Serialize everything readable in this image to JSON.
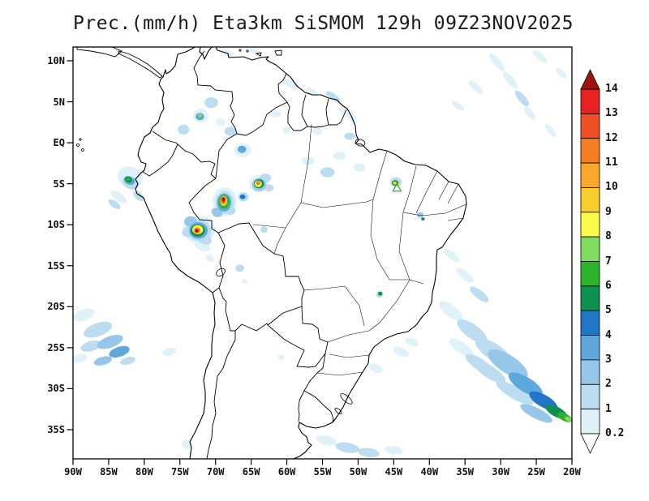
{
  "title": "Prec.(mm/h) Eta3km SiSMOM 129h 09Z23NOV2025",
  "chart_data": {
    "type": "heatmap",
    "variable": "Prec.(mm/h)",
    "model": "Eta3km SiSMOM",
    "forecast_hour": "129h",
    "valid_time": "09Z23NOV2025",
    "x_ticks": [
      "90W",
      "85W",
      "80W",
      "75W",
      "70W",
      "65W",
      "60W",
      "55W",
      "50W",
      "45W",
      "40W",
      "35W",
      "30W",
      "25W",
      "20W"
    ],
    "y_ticks": [
      "10N",
      "5N",
      "EQ",
      "5S",
      "10S",
      "15S",
      "20S",
      "25S",
      "30S",
      "35S"
    ],
    "colorbar": {
      "levels": [
        0.2,
        1,
        2,
        3,
        4,
        5,
        6,
        7,
        8,
        9,
        10,
        11,
        12,
        13,
        14
      ],
      "labels": [
        "0.2",
        "1",
        "2",
        "3",
        "4",
        "5",
        "6",
        "7",
        "8",
        "9",
        "10",
        "11",
        "12",
        "13",
        "14"
      ],
      "colors": [
        "#dff2fa",
        "#bcdcf0",
        "#96c6e9",
        "#5fa8dc",
        "#2176c8",
        "#0c9150",
        "#2cb42c",
        "#7fdc5f",
        "#fbfb4b",
        "#f8ce2e",
        "#f9a82b",
        "#f67d22",
        "#ef5023",
        "#e82222",
        "#9c1510"
      ],
      "under_color": "#ffffff"
    },
    "precip_cells": [
      [
        -82.0,
        -4.2,
        3.6,
        2.6,
        20,
        0.2
      ],
      [
        -81.9,
        -4.9,
        2.4,
        1.5,
        25,
        1
      ],
      [
        -82.1,
        -4.6,
        1.6,
        1.0,
        25,
        3
      ],
      [
        -82.2,
        -4.5,
        1.0,
        0.7,
        25,
        5
      ],
      [
        -82.25,
        -4.45,
        0.55,
        0.4,
        25,
        6
      ],
      [
        -83.6,
        -6.6,
        2.6,
        1.0,
        35,
        0.2
      ],
      [
        -84.2,
        -7.5,
        2.0,
        0.8,
        35,
        1
      ],
      [
        -80.8,
        -6.5,
        1.8,
        0.9,
        42,
        1
      ],
      [
        -72.3,
        -10.6,
        4.5,
        3.4,
        0,
        0.2
      ],
      [
        -72.3,
        -10.7,
        3.4,
        2.6,
        0,
        1
      ],
      [
        -72.4,
        -10.7,
        2.6,
        2.0,
        0,
        3
      ],
      [
        -72.5,
        -10.7,
        2.0,
        1.5,
        0,
        5
      ],
      [
        -72.5,
        -10.6,
        1.5,
        1.1,
        0,
        8
      ],
      [
        -72.6,
        -10.7,
        1.0,
        0.8,
        0,
        10
      ],
      [
        -72.6,
        -10.7,
        0.65,
        0.55,
        0,
        12
      ],
      [
        -72.65,
        -10.75,
        0.4,
        0.35,
        0,
        14
      ],
      [
        -71.6,
        -11.7,
        2.2,
        1.3,
        30,
        1
      ],
      [
        -71.9,
        -12.6,
        2.4,
        1.1,
        25,
        0.2
      ],
      [
        -73.5,
        -9.6,
        1.8,
        1.3,
        0,
        2
      ],
      [
        -73.9,
        -10.9,
        1.6,
        1.2,
        0,
        1
      ],
      [
        -68.7,
        -7.2,
        3.4,
        3.6,
        0,
        0.2
      ],
      [
        -68.7,
        -7.3,
        2.6,
        2.8,
        0,
        1
      ],
      [
        -68.8,
        -7.3,
        2.0,
        2.2,
        0,
        3
      ],
      [
        -68.8,
        -7.2,
        1.5,
        1.7,
        0,
        6
      ],
      [
        -68.85,
        -7.1,
        1.0,
        1.2,
        0,
        9
      ],
      [
        -68.9,
        -7.0,
        0.65,
        0.8,
        0,
        12
      ],
      [
        -68.9,
        -6.9,
        0.4,
        0.5,
        0,
        14
      ],
      [
        -69.8,
        -8.5,
        1.6,
        1.1,
        20,
        2
      ],
      [
        -67.9,
        -8.3,
        1.4,
        1.0,
        0,
        1
      ],
      [
        -63.9,
        -5.0,
        2.8,
        2.2,
        0,
        0.2
      ],
      [
        -63.9,
        -5.1,
        2.0,
        1.6,
        0,
        2
      ],
      [
        -63.9,
        -5.0,
        1.4,
        1.1,
        0,
        5
      ],
      [
        -64.0,
        -5.0,
        1.0,
        0.8,
        0,
        8
      ],
      [
        -64.0,
        -4.9,
        0.6,
        0.5,
        0,
        11
      ],
      [
        -63.0,
        -4.3,
        1.6,
        1.1,
        0,
        1
      ],
      [
        -62.5,
        -5.5,
        1.3,
        0.9,
        0,
        1
      ],
      [
        -66.1,
        -6.6,
        1.5,
        1.1,
        0,
        1
      ],
      [
        -66.2,
        -6.6,
        0.8,
        0.6,
        0,
        4
      ],
      [
        -72.1,
        3.3,
        2.2,
        1.7,
        0,
        0.2
      ],
      [
        -72.2,
        3.2,
        1.2,
        0.9,
        0,
        3
      ],
      [
        -72.2,
        3.3,
        0.6,
        0.45,
        0,
        7
      ],
      [
        -70.6,
        4.9,
        1.9,
        1.3,
        0,
        1
      ],
      [
        -74.5,
        1.6,
        1.6,
        1.2,
        0,
        1
      ],
      [
        -66.2,
        -0.9,
        2.3,
        1.7,
        0,
        0.2
      ],
      [
        -66.3,
        -0.8,
        1.2,
        0.9,
        0,
        3
      ],
      [
        -67.9,
        1.4,
        1.7,
        1.1,
        0,
        1
      ],
      [
        -69.3,
        2.5,
        1.3,
        0.9,
        0,
        0.2
      ],
      [
        -59.5,
        7.2,
        2.6,
        0.9,
        32,
        0.2
      ],
      [
        -56.5,
        6.2,
        2.0,
        0.8,
        32,
        0.2
      ],
      [
        -53.5,
        5.6,
        2.4,
        0.8,
        35,
        1
      ],
      [
        -52.0,
        3.8,
        1.6,
        0.7,
        40,
        0.2
      ],
      [
        -50.8,
        3.0,
        1.6,
        0.9,
        40,
        0.2
      ],
      [
        -57.0,
        -2.2,
        1.8,
        1.0,
        0,
        0.2
      ],
      [
        -54.3,
        -3.6,
        2.0,
        1.2,
        0,
        1
      ],
      [
        -52.6,
        -1.6,
        1.8,
        1.0,
        0,
        0.2
      ],
      [
        -51.2,
        0.8,
        1.5,
        0.9,
        0,
        1
      ],
      [
        -55.7,
        1.4,
        1.4,
        0.9,
        0,
        0.2
      ],
      [
        -49.8,
        -3.0,
        1.6,
        1.0,
        0,
        0.2
      ],
      [
        -44.7,
        -4.8,
        1.6,
        1.2,
        0,
        1
      ],
      [
        -44.8,
        -4.9,
        0.9,
        0.7,
        0,
        5
      ],
      [
        -44.85,
        -4.9,
        0.55,
        0.4,
        0,
        9
      ],
      [
        -41.3,
        -8.8,
        0.9,
        0.7,
        0,
        2
      ],
      [
        -40.9,
        -9.3,
        0.5,
        0.4,
        0,
        5
      ],
      [
        -66.6,
        -15.3,
        1.2,
        0.9,
        0,
        1
      ],
      [
        -65.9,
        -16.9,
        0.8,
        0.6,
        0,
        0.2
      ],
      [
        -63.2,
        -10.6,
        1.0,
        0.8,
        0,
        1
      ],
      [
        -70.8,
        -14.1,
        1.3,
        0.8,
        30,
        0.2
      ],
      [
        -30.5,
        9.8,
        3.2,
        0.9,
        50,
        0.2
      ],
      [
        -28.6,
        7.6,
        3.0,
        0.9,
        50,
        0.2
      ],
      [
        -27.0,
        5.4,
        2.8,
        0.9,
        50,
        1
      ],
      [
        -25.9,
        3.6,
        2.2,
        0.8,
        50,
        0.2
      ],
      [
        -33.5,
        6.8,
        2.6,
        0.8,
        42,
        0.2
      ],
      [
        -36.0,
        4.5,
        2.0,
        0.7,
        36,
        0.2
      ],
      [
        -23.0,
        1.5,
        2.2,
        0.8,
        52,
        0.2
      ],
      [
        -21.5,
        8.5,
        2.0,
        0.7,
        45,
        0.2
      ],
      [
        -24.5,
        10.5,
        2.6,
        0.8,
        40,
        0.2
      ],
      [
        -36.8,
        -13.8,
        2.6,
        0.9,
        40,
        0.2
      ],
      [
        -35.0,
        -16.2,
        3.0,
        1.0,
        40,
        0.2
      ],
      [
        -33.0,
        -18.5,
        3.2,
        1.0,
        38,
        1
      ],
      [
        -37.0,
        -20.5,
        4.0,
        1.4,
        38,
        0.2
      ],
      [
        -34.0,
        -23.0,
        5.0,
        1.7,
        36,
        1
      ],
      [
        -31.0,
        -25.5,
        6.0,
        2.0,
        34,
        1
      ],
      [
        -29.0,
        -27.0,
        6.5,
        2.2,
        33,
        2
      ],
      [
        -26.5,
        -29.5,
        5.5,
        1.8,
        32,
        3
      ],
      [
        -24.0,
        -31.5,
        4.5,
        1.5,
        30,
        4
      ],
      [
        -22.2,
        -32.8,
        3.4,
        1.2,
        28,
        5
      ],
      [
        -21.0,
        -33.5,
        2.2,
        0.9,
        26,
        6
      ],
      [
        -20.5,
        -33.7,
        1.1,
        0.5,
        25,
        7
      ],
      [
        -28.0,
        -30.5,
        6.0,
        1.5,
        30,
        1
      ],
      [
        -25.0,
        -33.0,
        5.0,
        1.3,
        27,
        2
      ],
      [
        -31.5,
        -28.0,
        5.0,
        1.5,
        32,
        1
      ],
      [
        -35.5,
        -25.0,
        4.0,
        1.3,
        34,
        0.2
      ],
      [
        -33.0,
        -27.0,
        4.5,
        1.4,
        33,
        1
      ],
      [
        -54.5,
        -36.3,
        3.0,
        1.1,
        12,
        0.2
      ],
      [
        -51.5,
        -37.2,
        3.4,
        1.2,
        10,
        1
      ],
      [
        -48.5,
        -37.8,
        3.0,
        1.1,
        8,
        1
      ],
      [
        -45.0,
        -37.5,
        2.6,
        1.0,
        8,
        0.2
      ],
      [
        -47.5,
        -27.5,
        2.0,
        1.0,
        25,
        0.2
      ],
      [
        -44.0,
        -25.5,
        2.4,
        1.0,
        22,
        0.2
      ],
      [
        -42.5,
        -24.3,
        2.0,
        0.9,
        20,
        0.2
      ],
      [
        -88.5,
        -21.0,
        3.2,
        1.3,
        -20,
        0.2
      ],
      [
        -86.5,
        -22.8,
        4.2,
        1.6,
        -20,
        1
      ],
      [
        -84.8,
        -24.3,
        3.8,
        1.4,
        -20,
        2
      ],
      [
        -83.5,
        -25.5,
        3.0,
        1.2,
        -18,
        3
      ],
      [
        -87.5,
        -24.8,
        3.0,
        1.2,
        -16,
        1
      ],
      [
        -89.2,
        -26.3,
        2.4,
        1.0,
        -14,
        0.2
      ],
      [
        -82.3,
        -26.6,
        2.2,
        0.9,
        -16,
        1
      ],
      [
        -85.8,
        -26.6,
        2.6,
        1.0,
        -15,
        2
      ],
      [
        -76.5,
        -25.5,
        2.0,
        0.9,
        -15,
        0.2
      ],
      [
        -74.0,
        -36.8,
        1.4,
        1.2,
        0,
        0.2
      ],
      [
        -60.8,
        -26.2,
        1.0,
        0.7,
        0,
        0.2
      ],
      [
        -46.9,
        -18.4,
        0.6,
        0.5,
        0,
        5
      ],
      [
        -47.0,
        -18.5,
        1.0,
        0.8,
        0,
        1
      ],
      [
        -61.5,
        3.5,
        1.4,
        0.9,
        0,
        0.2
      ],
      [
        -60.0,
        1.5,
        1.2,
        0.8,
        0,
        0.2
      ],
      [
        -68.5,
        11.0,
        1.8,
        0.8,
        15,
        0.2
      ],
      [
        -64.5,
        11.2,
        1.6,
        0.7,
        15,
        0.2
      ]
    ],
    "markers": [
      {
        "shape": "triangle-outline",
        "lon": -44.55,
        "lat": -5.5,
        "color": "#2cb42c"
      }
    ]
  }
}
